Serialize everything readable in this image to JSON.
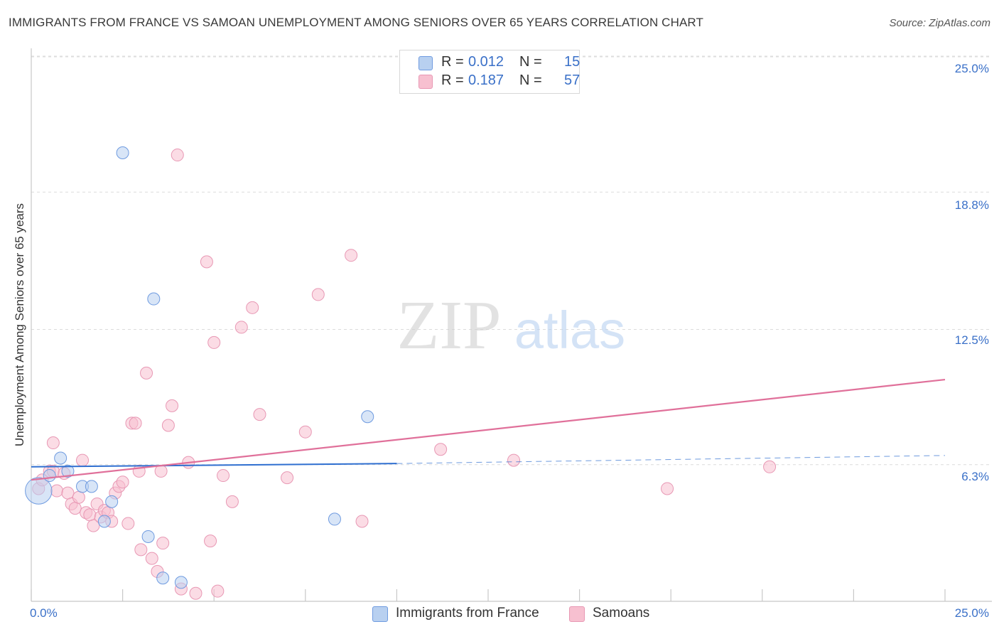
{
  "title": "IMMIGRANTS FROM FRANCE VS SAMOAN UNEMPLOYMENT AMONG SENIORS OVER 65 YEARS CORRELATION CHART",
  "source": "Source: ZipAtlas.com",
  "watermark": {
    "zip": "ZIP",
    "atlas": "atlas"
  },
  "colors": {
    "blue_fill": "#b8d0f0",
    "blue_stroke": "#6f9be0",
    "blue_line": "#2f6fd0",
    "pink_fill": "#f7c0d0",
    "pink_stroke": "#e898b4",
    "pink_line": "#e0709a",
    "tick_text": "#3a70c8",
    "grid": "#dcdcdc"
  },
  "legend": {
    "rows": [
      {
        "r_label": "R =",
        "r_value": "0.012",
        "n_label": "N =",
        "n_value": "15"
      },
      {
        "r_label": "R =",
        "r_value": "0.187",
        "n_label": "N =",
        "n_value": "57"
      }
    ]
  },
  "chart_data": {
    "type": "scatter",
    "title": "IMMIGRANTS FROM FRANCE VS SAMOAN UNEMPLOYMENT AMONG SENIORS OVER 65 YEARS CORRELATION CHART",
    "xlabel": "",
    "ylabel": "Unemployment Among Seniors over 65 years",
    "xlim": [
      0,
      25
    ],
    "ylim": [
      0,
      25
    ],
    "x_tick_labels": [
      "0.0%",
      "25.0%"
    ],
    "y_tick_labels": [
      "6.3%",
      "12.5%",
      "18.8%",
      "25.0%"
    ],
    "y_ticks": [
      6.3,
      12.5,
      18.8,
      25.0
    ],
    "grid": "horizontal dashed",
    "legend_position": "top-center",
    "series": [
      {
        "name": "Immigrants from France",
        "r": 0.012,
        "n": 15,
        "trend": {
          "x0": 0.0,
          "y0": 6.2,
          "x1": 10.0,
          "y1": 6.35,
          "dashed_to_x": 25.0,
          "dashed_to_y": 6.72
        },
        "points": [
          [
            0.2,
            5.1,
            2.2
          ],
          [
            0.5,
            5.8,
            1.0
          ],
          [
            0.8,
            6.6,
            1.0
          ],
          [
            1.0,
            6.0,
            1.0
          ],
          [
            1.4,
            5.3,
            1.0
          ],
          [
            1.65,
            5.3,
            1.0
          ],
          [
            2.0,
            3.7,
            1.0
          ],
          [
            2.2,
            4.6,
            1.0
          ],
          [
            2.5,
            20.6,
            1.0
          ],
          [
            3.2,
            3.0,
            1.0
          ],
          [
            3.35,
            13.9,
            1.0
          ],
          [
            3.6,
            1.1,
            1.0
          ],
          [
            4.1,
            0.9,
            1.0
          ],
          [
            8.3,
            3.8,
            1.0
          ],
          [
            9.2,
            8.5,
            1.0
          ]
        ]
      },
      {
        "name": "Samoans",
        "r": 0.187,
        "n": 57,
        "trend": {
          "x0": 0.0,
          "y0": 5.6,
          "x1": 25.0,
          "y1": 10.2
        },
        "points": [
          [
            0.2,
            5.2,
            1.0
          ],
          [
            0.3,
            5.6,
            1.0
          ],
          [
            0.5,
            6.0,
            1.0
          ],
          [
            0.6,
            6.0,
            1.0
          ],
          [
            0.6,
            7.3,
            1.0
          ],
          [
            0.7,
            5.1,
            1.0
          ],
          [
            0.9,
            5.9,
            1.0
          ],
          [
            1.0,
            5.0,
            1.0
          ],
          [
            1.1,
            4.5,
            1.0
          ],
          [
            1.2,
            4.3,
            1.0
          ],
          [
            1.3,
            4.8,
            1.0
          ],
          [
            1.4,
            6.5,
            1.0
          ],
          [
            1.5,
            4.1,
            1.0
          ],
          [
            1.6,
            4.0,
            1.0
          ],
          [
            1.7,
            3.5,
            1.0
          ],
          [
            1.8,
            4.5,
            1.0
          ],
          [
            1.9,
            3.9,
            1.0
          ],
          [
            2.0,
            4.2,
            1.0
          ],
          [
            2.1,
            4.1,
            1.0
          ],
          [
            2.2,
            3.7,
            1.0
          ],
          [
            2.3,
            5.0,
            1.0
          ],
          [
            2.4,
            5.3,
            1.0
          ],
          [
            2.5,
            5.5,
            1.0
          ],
          [
            2.65,
            3.6,
            1.0
          ],
          [
            2.75,
            8.2,
            1.0
          ],
          [
            2.85,
            8.2,
            1.0
          ],
          [
            2.95,
            6.0,
            1.0
          ],
          [
            3.0,
            2.4,
            1.0
          ],
          [
            3.15,
            10.5,
            1.0
          ],
          [
            3.3,
            2.0,
            1.0
          ],
          [
            3.45,
            1.4,
            1.0
          ],
          [
            3.55,
            6.0,
            1.0
          ],
          [
            3.6,
            2.7,
            1.0
          ],
          [
            3.75,
            8.1,
            1.0
          ],
          [
            3.85,
            9.0,
            1.0
          ],
          [
            4.0,
            20.5,
            1.0
          ],
          [
            4.1,
            0.6,
            1.0
          ],
          [
            4.3,
            6.4,
            1.0
          ],
          [
            4.5,
            0.4,
            1.0
          ],
          [
            4.8,
            15.6,
            1.0
          ],
          [
            4.9,
            2.8,
            1.0
          ],
          [
            5.0,
            11.9,
            1.0
          ],
          [
            5.1,
            0.5,
            1.0
          ],
          [
            5.25,
            5.8,
            1.0
          ],
          [
            5.5,
            4.6,
            1.0
          ],
          [
            5.75,
            12.6,
            1.0
          ],
          [
            6.05,
            13.5,
            1.0
          ],
          [
            6.25,
            8.6,
            1.0
          ],
          [
            7.0,
            5.7,
            1.0
          ],
          [
            7.5,
            7.8,
            1.0
          ],
          [
            7.85,
            14.1,
            1.0
          ],
          [
            8.75,
            15.9,
            1.0
          ],
          [
            9.05,
            3.7,
            1.0
          ],
          [
            11.2,
            7.0,
            1.0
          ],
          [
            13.2,
            6.5,
            1.0
          ],
          [
            17.4,
            5.2,
            1.0
          ],
          [
            20.2,
            6.2,
            1.0
          ]
        ]
      }
    ]
  },
  "bottom_legend": [
    {
      "label": "Immigrants from France"
    },
    {
      "label": "Samoans"
    }
  ]
}
